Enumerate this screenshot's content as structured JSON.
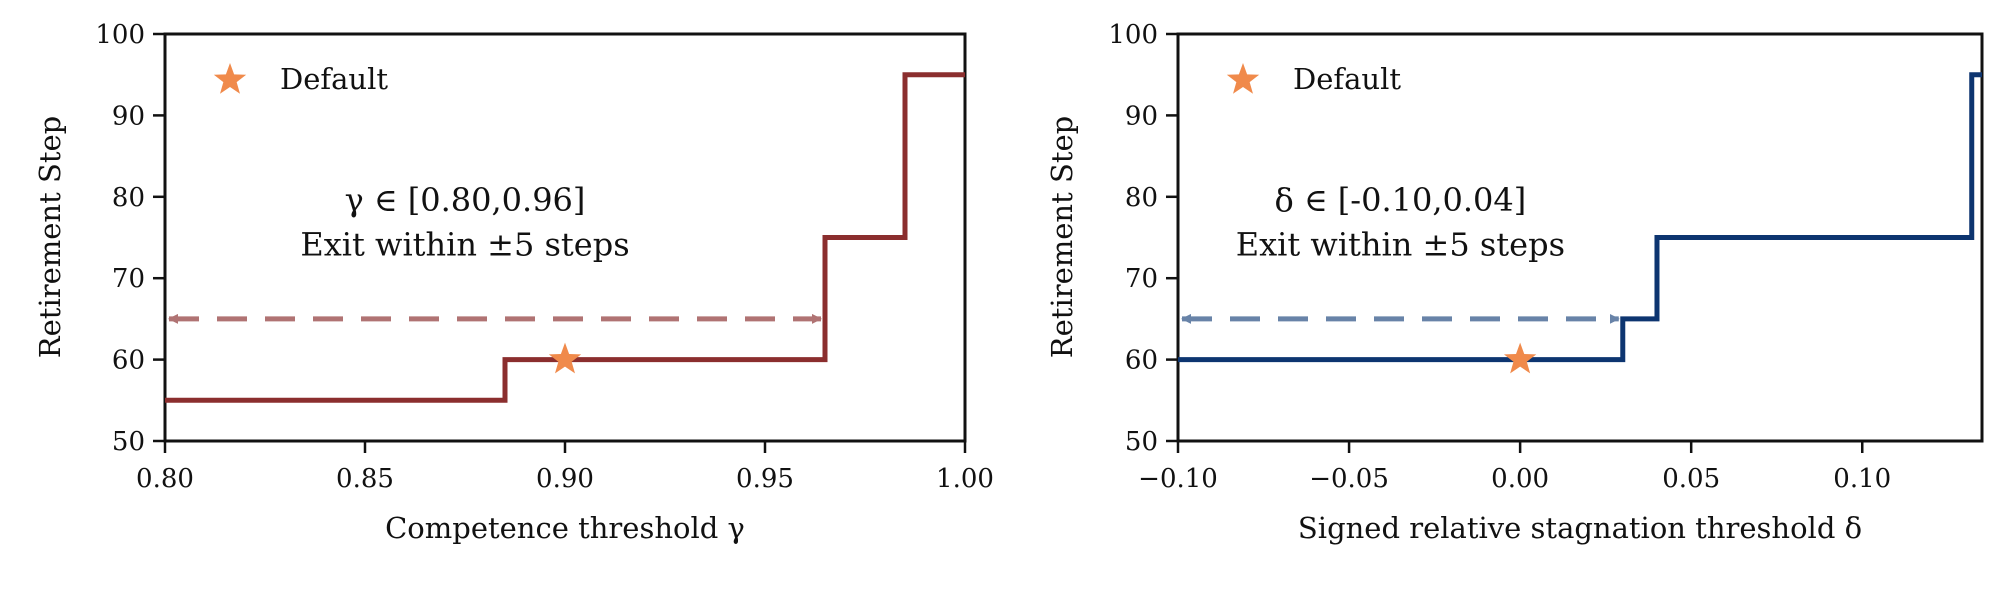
{
  "chart_data": [
    {
      "type": "line",
      "step": true,
      "xlabel": "Competence threshold γ",
      "ylabel": "Retirement Step",
      "xlim": [
        0.8,
        1.0
      ],
      "ylim": [
        50,
        100
      ],
      "xticks": [
        0.8,
        0.85,
        0.9,
        0.95,
        1.0
      ],
      "xtick_labels": [
        "0.80",
        "0.85",
        "0.90",
        "0.95",
        "1.00"
      ],
      "yticks": [
        50,
        60,
        70,
        80,
        90,
        100
      ],
      "ytick_labels": [
        "50",
        "60",
        "70",
        "80",
        "90",
        "100"
      ],
      "grid": false,
      "legend": {
        "label": "Default",
        "position": "top-left"
      },
      "line_color": "#8b2e2e",
      "arrow_color": "#b07373",
      "series": [
        {
          "x": [
            0.8,
            0.885,
            0.885,
            0.965,
            0.965,
            0.985,
            0.985,
            1.0
          ],
          "y": [
            55,
            55,
            60,
            60,
            75,
            75,
            95,
            95
          ]
        }
      ],
      "default_point": {
        "x": 0.9,
        "y": 60
      },
      "range_arrow": {
        "x_start": 0.8,
        "x_end": 0.965,
        "y": 65
      },
      "annotation": {
        "line1": "γ ∈ [0.80,0.96]",
        "line2": "Exit within ±5 steps",
        "x": 0.875,
        "y1": 79.5,
        "y2": 74
      }
    },
    {
      "type": "line",
      "step": true,
      "xlabel": "Signed relative stagnation threshold δ",
      "ylabel": "Retirement Step",
      "xlim": [
        -0.1,
        0.135
      ],
      "ylim": [
        50,
        100
      ],
      "xticks": [
        -0.1,
        -0.05,
        0.0,
        0.05,
        0.1
      ],
      "xtick_labels": [
        "−0.10",
        "−0.05",
        "0.00",
        "0.05",
        "0.10"
      ],
      "yticks": [
        50,
        60,
        70,
        80,
        90,
        100
      ],
      "ytick_labels": [
        "50",
        "60",
        "70",
        "80",
        "90",
        "100"
      ],
      "grid": false,
      "legend": {
        "label": "Default",
        "position": "top-left"
      },
      "line_color": "#0d3570",
      "arrow_color": "#6883a8",
      "series": [
        {
          "x": [
            -0.1,
            0.03,
            0.03,
            0.04,
            0.04,
            0.132,
            0.132,
            0.135
          ],
          "y": [
            60,
            60,
            65,
            65,
            75,
            75,
            95,
            95
          ]
        }
      ],
      "default_point": {
        "x": 0.0,
        "y": 60
      },
      "range_arrow": {
        "x_start": -0.1,
        "x_end": 0.03,
        "y": 65
      },
      "annotation": {
        "line1": "δ ∈ [-0.10,0.04]",
        "line2": "Exit within ±5 steps",
        "x": -0.035,
        "y1": 79.5,
        "y2": 74
      }
    }
  ],
  "colors": {
    "default_star": "#f08a4b",
    "axis": "#111111"
  },
  "icons": {
    "legend_marker": "star-icon",
    "default_marker": "star-icon"
  }
}
